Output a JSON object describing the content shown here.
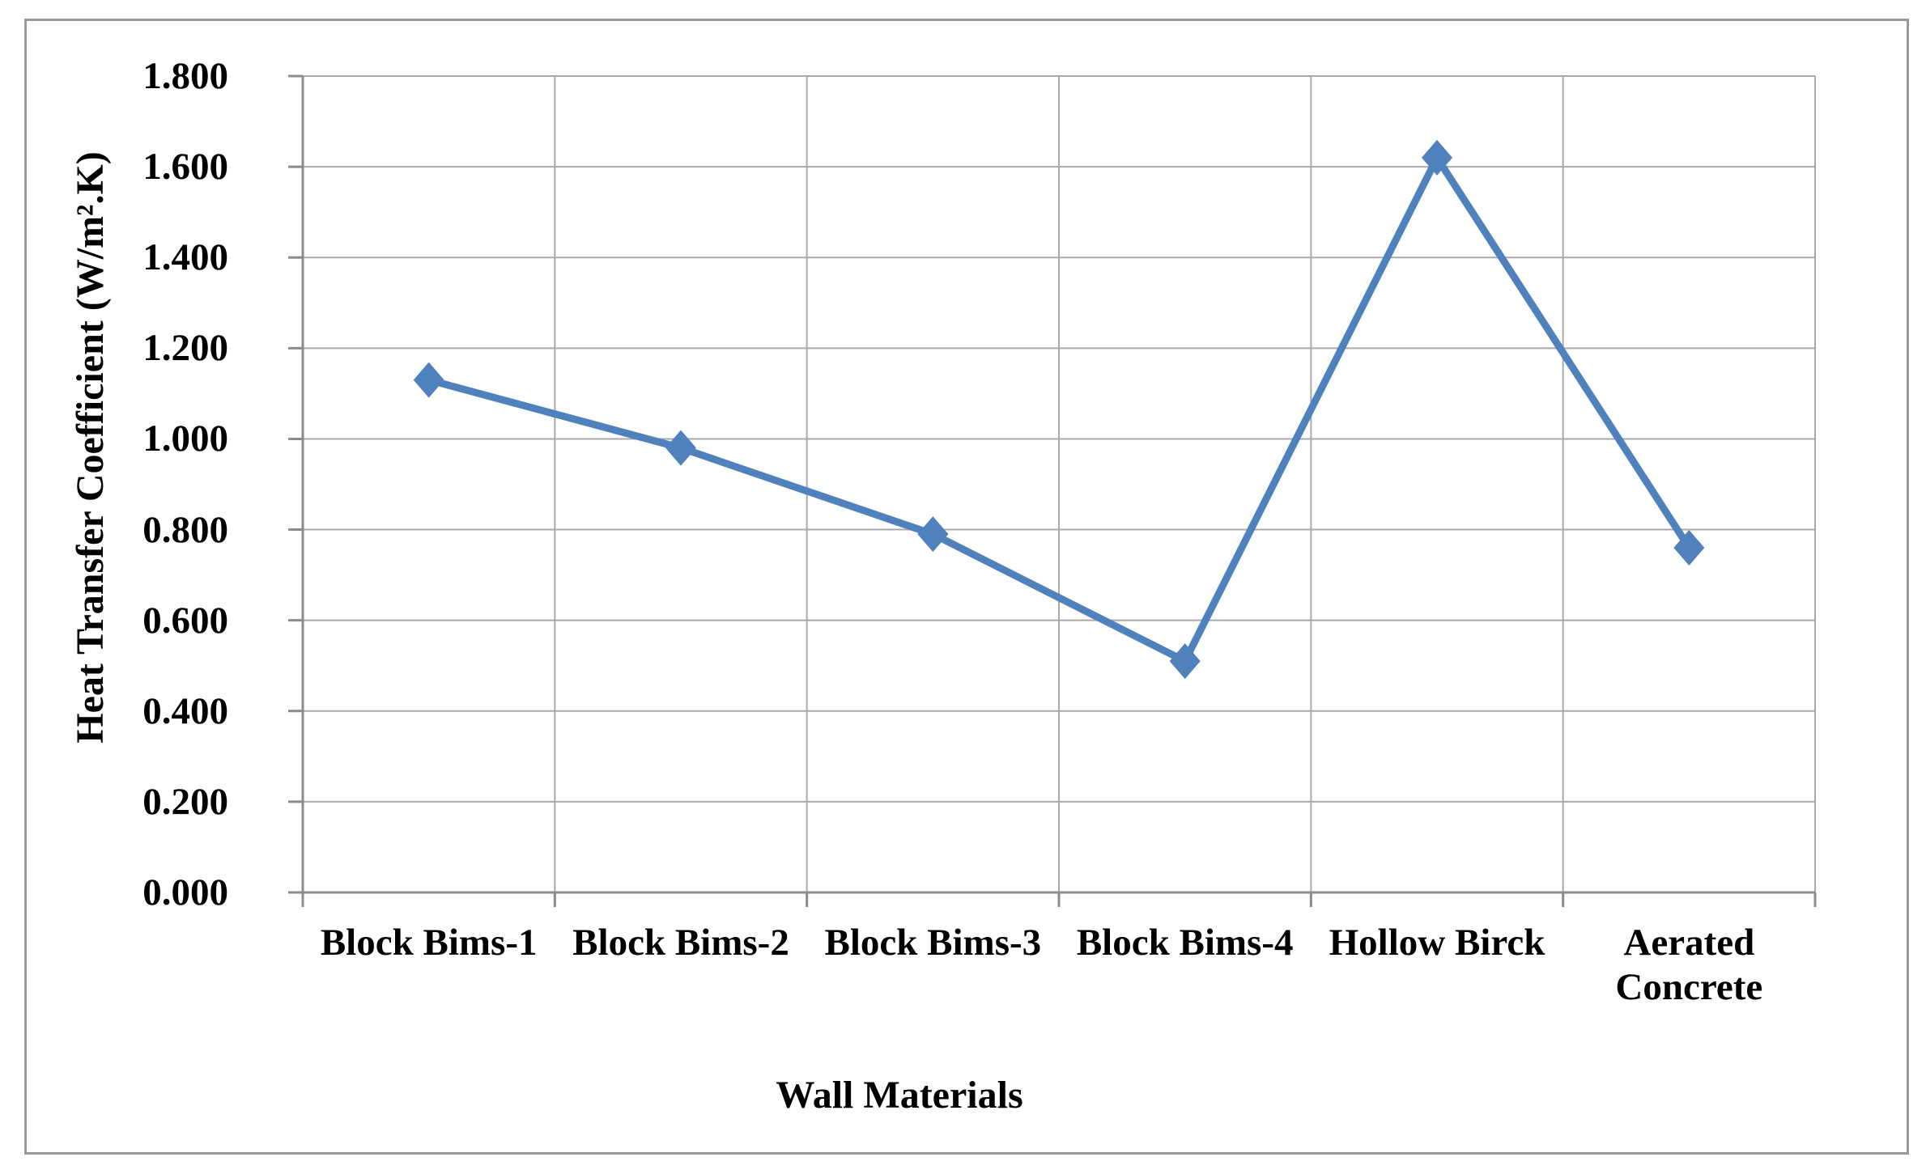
{
  "chart_data": {
    "type": "line",
    "title": "",
    "categories": [
      "Block Bims-1",
      "Block Bims-2",
      "Block Bims-3",
      "Block Bims-4",
      "Hollow Birck",
      "Aerated Concrete"
    ],
    "values": [
      1.13,
      0.98,
      0.79,
      0.51,
      1.62,
      0.76
    ],
    "series_name": "Heat Transfer Coefficient",
    "xlabel": "Wall Materials",
    "ylabel": "Heat Transfer Coefficient (W/m².K)",
    "ylim": [
      0,
      1.8
    ],
    "ytick_step": 0.2,
    "ytick_labels": [
      "0.000",
      "0.200",
      "0.400",
      "0.600",
      "0.800",
      "1.000",
      "1.200",
      "1.400",
      "1.600",
      "1.800"
    ],
    "grid": true,
    "legend": "none",
    "marker": "diamond",
    "colors": {
      "line": "#4F81BD",
      "marker": "#4F81BD",
      "gridline": "#A9A9A9",
      "axis": "#8C8C8C",
      "text": "#000000",
      "frame_border": "#989898",
      "background": "#FFFFFF"
    }
  }
}
